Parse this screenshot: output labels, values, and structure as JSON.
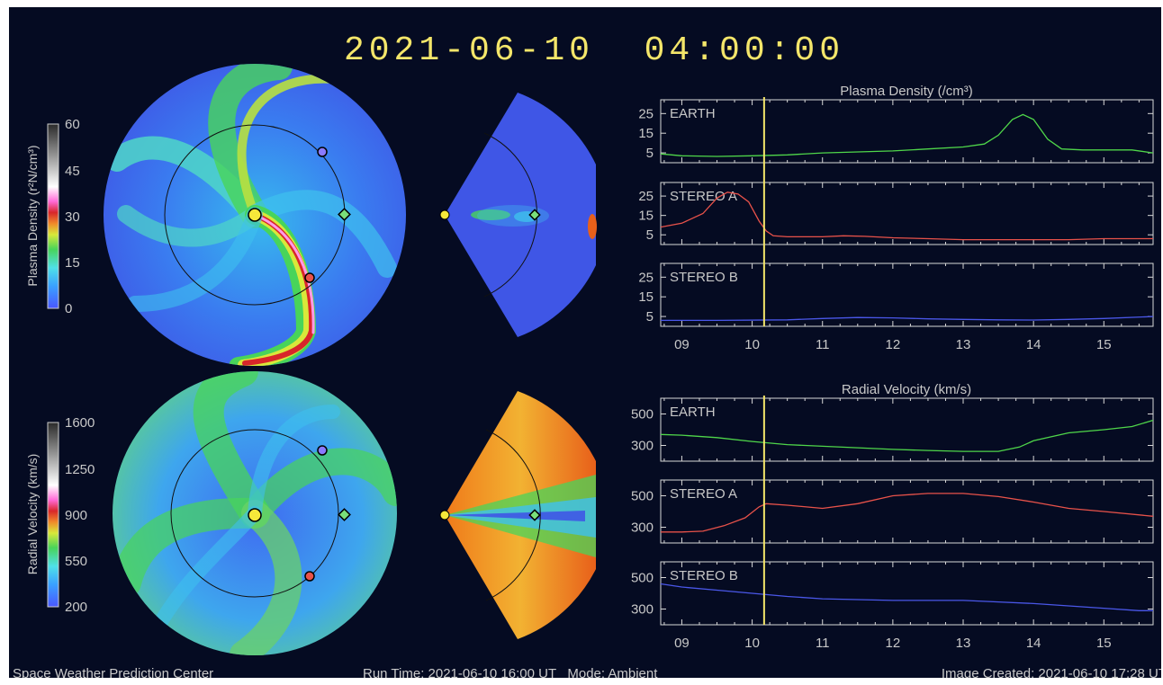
{
  "header": {
    "timestamp": "2021-06-10  04:00:00"
  },
  "colors": {
    "background": "#050b22",
    "title": "#f4e66a",
    "earth": "#4fd64a",
    "stereo_a": "#e8524a",
    "stereo_b": "#4a57e8",
    "marker_line": "#f4e66a"
  },
  "colorbars": {
    "density": {
      "label": "Plasma Density (r²N/cm³)",
      "ticks": [
        "60",
        "45",
        "30",
        "15",
        "0"
      ]
    },
    "velocity": {
      "label": "Radial Velocity (km/s)",
      "ticks": [
        "1600",
        "1250",
        "900",
        "550",
        "200"
      ]
    }
  },
  "panels": {
    "density_title": "Plasma Density (/cm³)",
    "velocity_title": "Radial Velocity (km/s)"
  },
  "footer": {
    "left": "Space Weather Prediction Center",
    "middle": "Run Time: 2021-06-10 16:00 UT   Mode: Ambient",
    "right": "Image Created: 2021-06-10 17:28 UT"
  },
  "chart_data": [
    {
      "type": "line",
      "title": "Plasma Density (/cm³)",
      "x_ticks": [
        "09",
        "10",
        "11",
        "12",
        "13",
        "14",
        "15"
      ],
      "xlim": [
        8.7,
        15.7
      ],
      "ylim": [
        0,
        32
      ],
      "y_ticks": [
        "25",
        "15",
        "5"
      ],
      "current_time": 10.17,
      "series": [
        {
          "name": "EARTH",
          "x": [
            8.7,
            9.0,
            9.5,
            10.0,
            10.5,
            11.0,
            11.5,
            12.0,
            12.5,
            13.0,
            13.3,
            13.5,
            13.7,
            13.85,
            14.0,
            14.2,
            14.4,
            14.7,
            15.0,
            15.4,
            15.7
          ],
          "y": [
            4.5,
            3.5,
            3.2,
            3.5,
            4.0,
            5.0,
            5.5,
            6.0,
            7.0,
            8.0,
            9.5,
            14.0,
            22.0,
            24.5,
            22.0,
            12.0,
            7.0,
            6.5,
            6.5,
            6.5,
            5.0
          ]
        },
        {
          "name": "STEREO A",
          "x": [
            8.7,
            9.0,
            9.3,
            9.5,
            9.65,
            9.8,
            9.95,
            10.1,
            10.2,
            10.3,
            10.5,
            11.0,
            11.3,
            11.6,
            12.0,
            12.5,
            13.0,
            13.5,
            14.0,
            14.5,
            15.0,
            15.7
          ],
          "y": [
            9.0,
            11.0,
            16.0,
            24.0,
            27.0,
            26.0,
            22.0,
            12.0,
            7.0,
            4.5,
            4.0,
            4.0,
            4.5,
            4.2,
            3.5,
            3.0,
            2.5,
            2.5,
            2.5,
            2.5,
            3.0,
            3.0
          ]
        },
        {
          "name": "STEREO B",
          "x": [
            8.7,
            9.5,
            10.5,
            11.0,
            11.5,
            12.0,
            12.5,
            13.0,
            13.5,
            14.0,
            14.5,
            15.0,
            15.7
          ],
          "y": [
            3.0,
            3.0,
            3.3,
            4.0,
            4.5,
            4.3,
            3.8,
            3.5,
            3.3,
            3.2,
            3.5,
            4.0,
            5.0
          ]
        }
      ]
    },
    {
      "type": "line",
      "title": "Radial Velocity (km/s)",
      "x_ticks": [
        "09",
        "10",
        "11",
        "12",
        "13",
        "14",
        "15"
      ],
      "xlim": [
        8.7,
        15.7
      ],
      "ylim": [
        200,
        600
      ],
      "y_ticks": [
        "500",
        "300"
      ],
      "current_time": 10.17,
      "series": [
        {
          "name": "EARTH",
          "x": [
            8.7,
            9.0,
            9.5,
            10.0,
            10.5,
            11.0,
            11.5,
            12.0,
            12.5,
            13.0,
            13.5,
            13.8,
            14.0,
            14.5,
            15.0,
            15.4,
            15.7
          ],
          "y": [
            370,
            365,
            350,
            325,
            305,
            295,
            285,
            275,
            268,
            262,
            262,
            290,
            330,
            380,
            400,
            420,
            460
          ]
        },
        {
          "name": "STEREO A",
          "x": [
            8.7,
            9.0,
            9.3,
            9.6,
            9.9,
            10.1,
            10.2,
            10.5,
            11.0,
            11.5,
            12.0,
            12.5,
            13.0,
            13.5,
            14.0,
            14.5,
            15.0,
            15.7
          ],
          "y": [
            270,
            270,
            275,
            310,
            360,
            430,
            450,
            440,
            420,
            450,
            500,
            515,
            515,
            495,
            460,
            420,
            400,
            370
          ]
        },
        {
          "name": "STEREO B",
          "x": [
            8.7,
            9.0,
            9.5,
            10.0,
            10.5,
            11.0,
            11.5,
            12.0,
            12.5,
            13.0,
            13.5,
            14.0,
            14.5,
            15.0,
            15.5,
            15.7
          ],
          "y": [
            460,
            440,
            420,
            400,
            380,
            365,
            360,
            355,
            355,
            355,
            345,
            335,
            320,
            305,
            290,
            290
          ]
        }
      ]
    }
  ]
}
